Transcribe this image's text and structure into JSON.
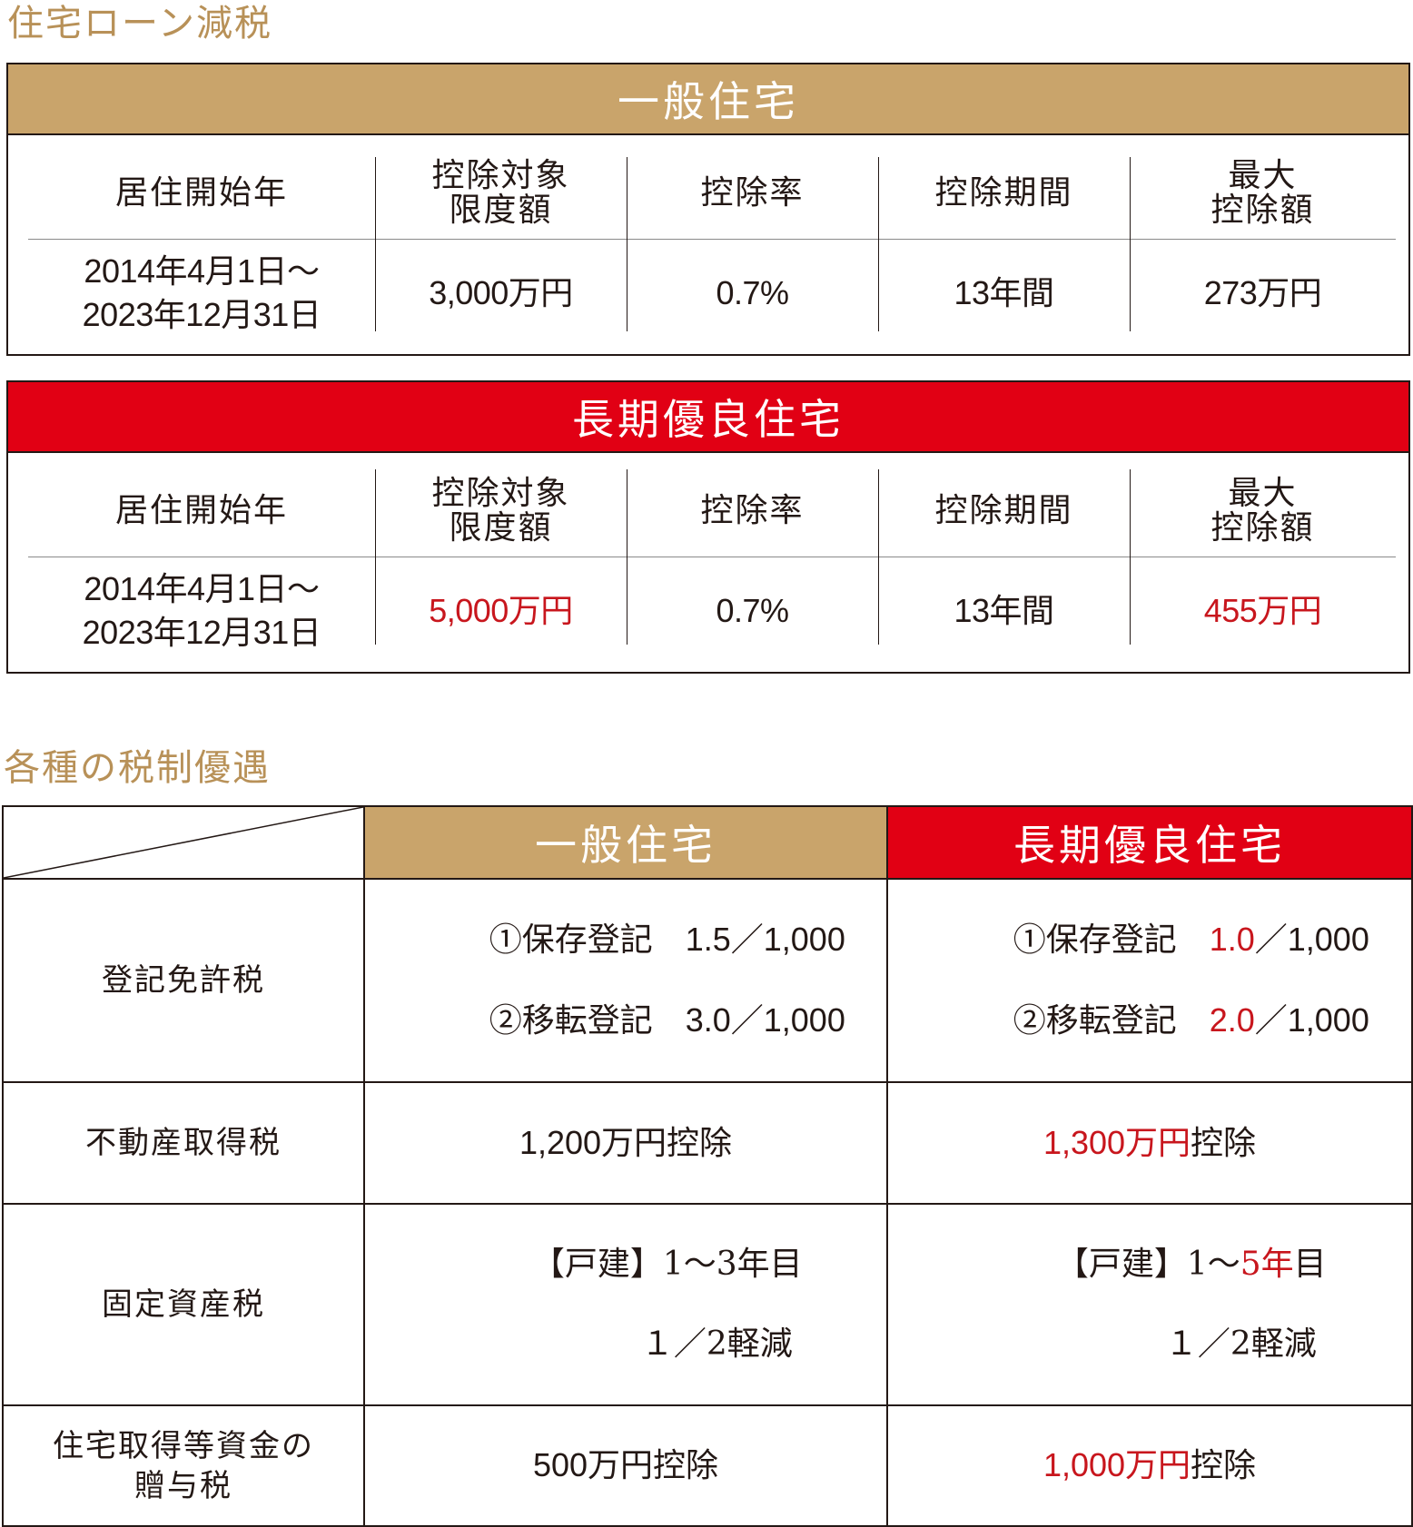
{
  "section1_title": "住宅ローン減税",
  "section2_title": "各種の税制優遇",
  "loan_headers": [
    "居住開始年",
    "控除対象\n限度額",
    "控除率",
    "控除期間",
    "最大\n控除額"
  ],
  "general": {
    "title": "一般住宅",
    "period": "2014年4月1日～\n2023年12月31日",
    "limit": "3,000万円",
    "rate": "0.7%",
    "duration": "13年間",
    "max": "273万円"
  },
  "longterm": {
    "title": "長期優良住宅",
    "period": "2014年4月1日～\n2023年12月31日",
    "limit": "5,000万円",
    "rate": "0.7%",
    "duration": "13年間",
    "max": "455万円"
  },
  "tax_table": {
    "col_general": "一般住宅",
    "col_longterm": "長期優良住宅",
    "rows": {
      "registration": {
        "label": "登記免許税",
        "general": {
          "line1_prefix": "①保存登記　",
          "line1_rate": "1.5",
          "line1_suffix": "／1,000",
          "line2_prefix": "②移転登記　",
          "line2_rate": "3.0",
          "line2_suffix": "／1,000"
        },
        "longterm": {
          "line1_prefix": "①保存登記　",
          "line1_rate": "1.0",
          "line1_suffix": "／1,000",
          "line2_prefix": "②移転登記　",
          "line2_rate": "2.0",
          "line2_suffix": "／1,000"
        }
      },
      "acquisition": {
        "label": "不動産取得税",
        "general_amount": "1,200万円",
        "general_suffix": "控除",
        "longterm_amount": "1,300万円",
        "longterm_suffix": "控除"
      },
      "property": {
        "label": "固定資産税",
        "general_line1_prefix": "【戸建】1～",
        "general_line1_years": "3年",
        "general_line1_suffix": "目",
        "general_line2": "１／2軽減",
        "longterm_line1_prefix": "【戸建】1～",
        "longterm_line1_years": "5年",
        "longterm_line1_suffix": "目",
        "longterm_line2": "１／2軽減"
      },
      "gift": {
        "label": "住宅取得等資金の\n贈与税",
        "general_amount": "500万円",
        "general_suffix": "控除",
        "longterm_amount": "1,000万円",
        "longterm_suffix": "控除"
      }
    }
  }
}
